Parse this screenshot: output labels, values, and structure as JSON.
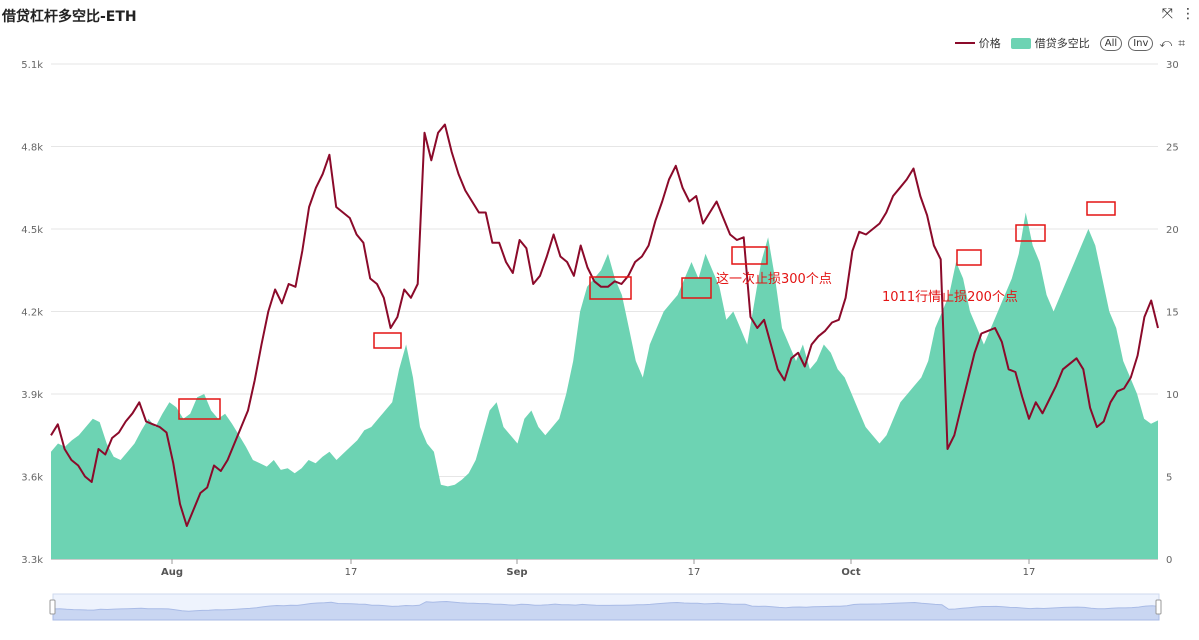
{
  "window": {
    "title": "借贷杠杆多空比-ETH",
    "icons": [
      "fullscreen-icon",
      "more-vertical-icon"
    ]
  },
  "legend": {
    "price_label": "价格",
    "ratio_label": "借贷多空比",
    "all_label": "All",
    "inv_label": "Inv"
  },
  "colors": {
    "price": "#8b0a2a",
    "ratio": "#6dd3b3",
    "annotation": "#e31414",
    "grid": "#e6e6e6"
  },
  "annotations": [
    {
      "text": "这一次止损300个点"
    },
    {
      "text": "1011行情止损200个点"
    }
  ],
  "chart_data": {
    "type": "line",
    "x_ticks": [
      "Aug",
      "17",
      "Sep",
      "17",
      "Oct",
      "17"
    ],
    "y_left": {
      "ticks": [
        "3.3k",
        "3.6k",
        "3.9k",
        "4.2k",
        "4.5k",
        "4.8k",
        "5.1k"
      ],
      "range": [
        3300,
        5100
      ]
    },
    "y_right": {
      "ticks": [
        "0",
        "5",
        "10",
        "15",
        "20",
        "25",
        "30"
      ],
      "range": [
        0,
        30
      ]
    },
    "grid": true,
    "legend_position": "top-right",
    "series": [
      {
        "name": "价格",
        "type": "line",
        "axis": "left",
        "values": [
          3750,
          3790,
          3700,
          3660,
          3640,
          3600,
          3580,
          3700,
          3680,
          3740,
          3760,
          3800,
          3830,
          3870,
          3800,
          3790,
          3780,
          3760,
          3650,
          3500,
          3420,
          3480,
          3540,
          3560,
          3640,
          3620,
          3660,
          3720,
          3780,
          3840,
          3950,
          4080,
          4200,
          4280,
          4230,
          4300,
          4290,
          4420,
          4580,
          4650,
          4700,
          4770,
          4580,
          4560,
          4540,
          4480,
          4450,
          4320,
          4300,
          4250,
          4140,
          4180,
          4280,
          4250,
          4300,
          4850,
          4750,
          4850,
          4880,
          4780,
          4700,
          4640,
          4600,
          4560,
          4560,
          4450,
          4450,
          4380,
          4340,
          4460,
          4430,
          4300,
          4330,
          4400,
          4480,
          4400,
          4380,
          4330,
          4440,
          4360,
          4310,
          4290,
          4290,
          4310,
          4300,
          4330,
          4380,
          4400,
          4440,
          4530,
          4600,
          4680,
          4730,
          4650,
          4600,
          4620,
          4520,
          4560,
          4600,
          4540,
          4480,
          4460,
          4470,
          4180,
          4140,
          4170,
          4080,
          3990,
          3950,
          4030,
          4050,
          4000,
          4080,
          4110,
          4130,
          4160,
          4170,
          4250,
          4420,
          4490,
          4480,
          4500,
          4520,
          4560,
          4620,
          4650,
          4680,
          4720,
          4620,
          4550,
          4440,
          4390,
          3700,
          3750,
          3850,
          3950,
          4050,
          4120,
          4130,
          4140,
          4090,
          3990,
          3980,
          3890,
          3810,
          3870,
          3830,
          3880,
          3930,
          3990,
          4010,
          4030,
          3990,
          3850,
          3780,
          3800,
          3870,
          3910,
          3920,
          3960,
          4040,
          4180,
          4240,
          4140
        ]
      },
      {
        "name": "借贷多空比",
        "type": "area",
        "axis": "right",
        "values": [
          6.5,
          7,
          6.8,
          7.2,
          7.5,
          8,
          8.5,
          8.3,
          7,
          6.2,
          6,
          6.5,
          7,
          7.8,
          8.5,
          8,
          8.8,
          9.5,
          9.2,
          8.5,
          8.8,
          9.8,
          10,
          9,
          8.5,
          8.8,
          8.2,
          7.5,
          6.8,
          6,
          5.8,
          5.6,
          6,
          5.4,
          5.5,
          5.2,
          5.5,
          6,
          5.8,
          6.2,
          6.5,
          6,
          6.4,
          6.8,
          7.2,
          7.8,
          8,
          8.5,
          9,
          9.5,
          11.5,
          13,
          11,
          8,
          7,
          6.5,
          4.5,
          4.4,
          4.5,
          4.8,
          5.2,
          6,
          7.5,
          9,
          9.5,
          8,
          7.5,
          7,
          8.5,
          9,
          8,
          7.5,
          8,
          8.5,
          10,
          12,
          15,
          16.5,
          17,
          17.5,
          18.5,
          17,
          16,
          14,
          12,
          11,
          13,
          14,
          15,
          15.5,
          16,
          17,
          18,
          17,
          18.5,
          17.5,
          16.5,
          14.5,
          15,
          14,
          13,
          15.5,
          18,
          19.5,
          17,
          14,
          13,
          12,
          13,
          11.5,
          12,
          13,
          12.5,
          11.5,
          11,
          10,
          9,
          8,
          7.5,
          7,
          7.5,
          8.5,
          9.5,
          10,
          10.5,
          11,
          12,
          14,
          15,
          16,
          18,
          17,
          15,
          14,
          13,
          14,
          15,
          16,
          17,
          18.5,
          21,
          19,
          18,
          16,
          15,
          16,
          17,
          18,
          19,
          20,
          19,
          17,
          15,
          14,
          12,
          11,
          10,
          8.5,
          8.2,
          8.4
        ]
      }
    ]
  }
}
